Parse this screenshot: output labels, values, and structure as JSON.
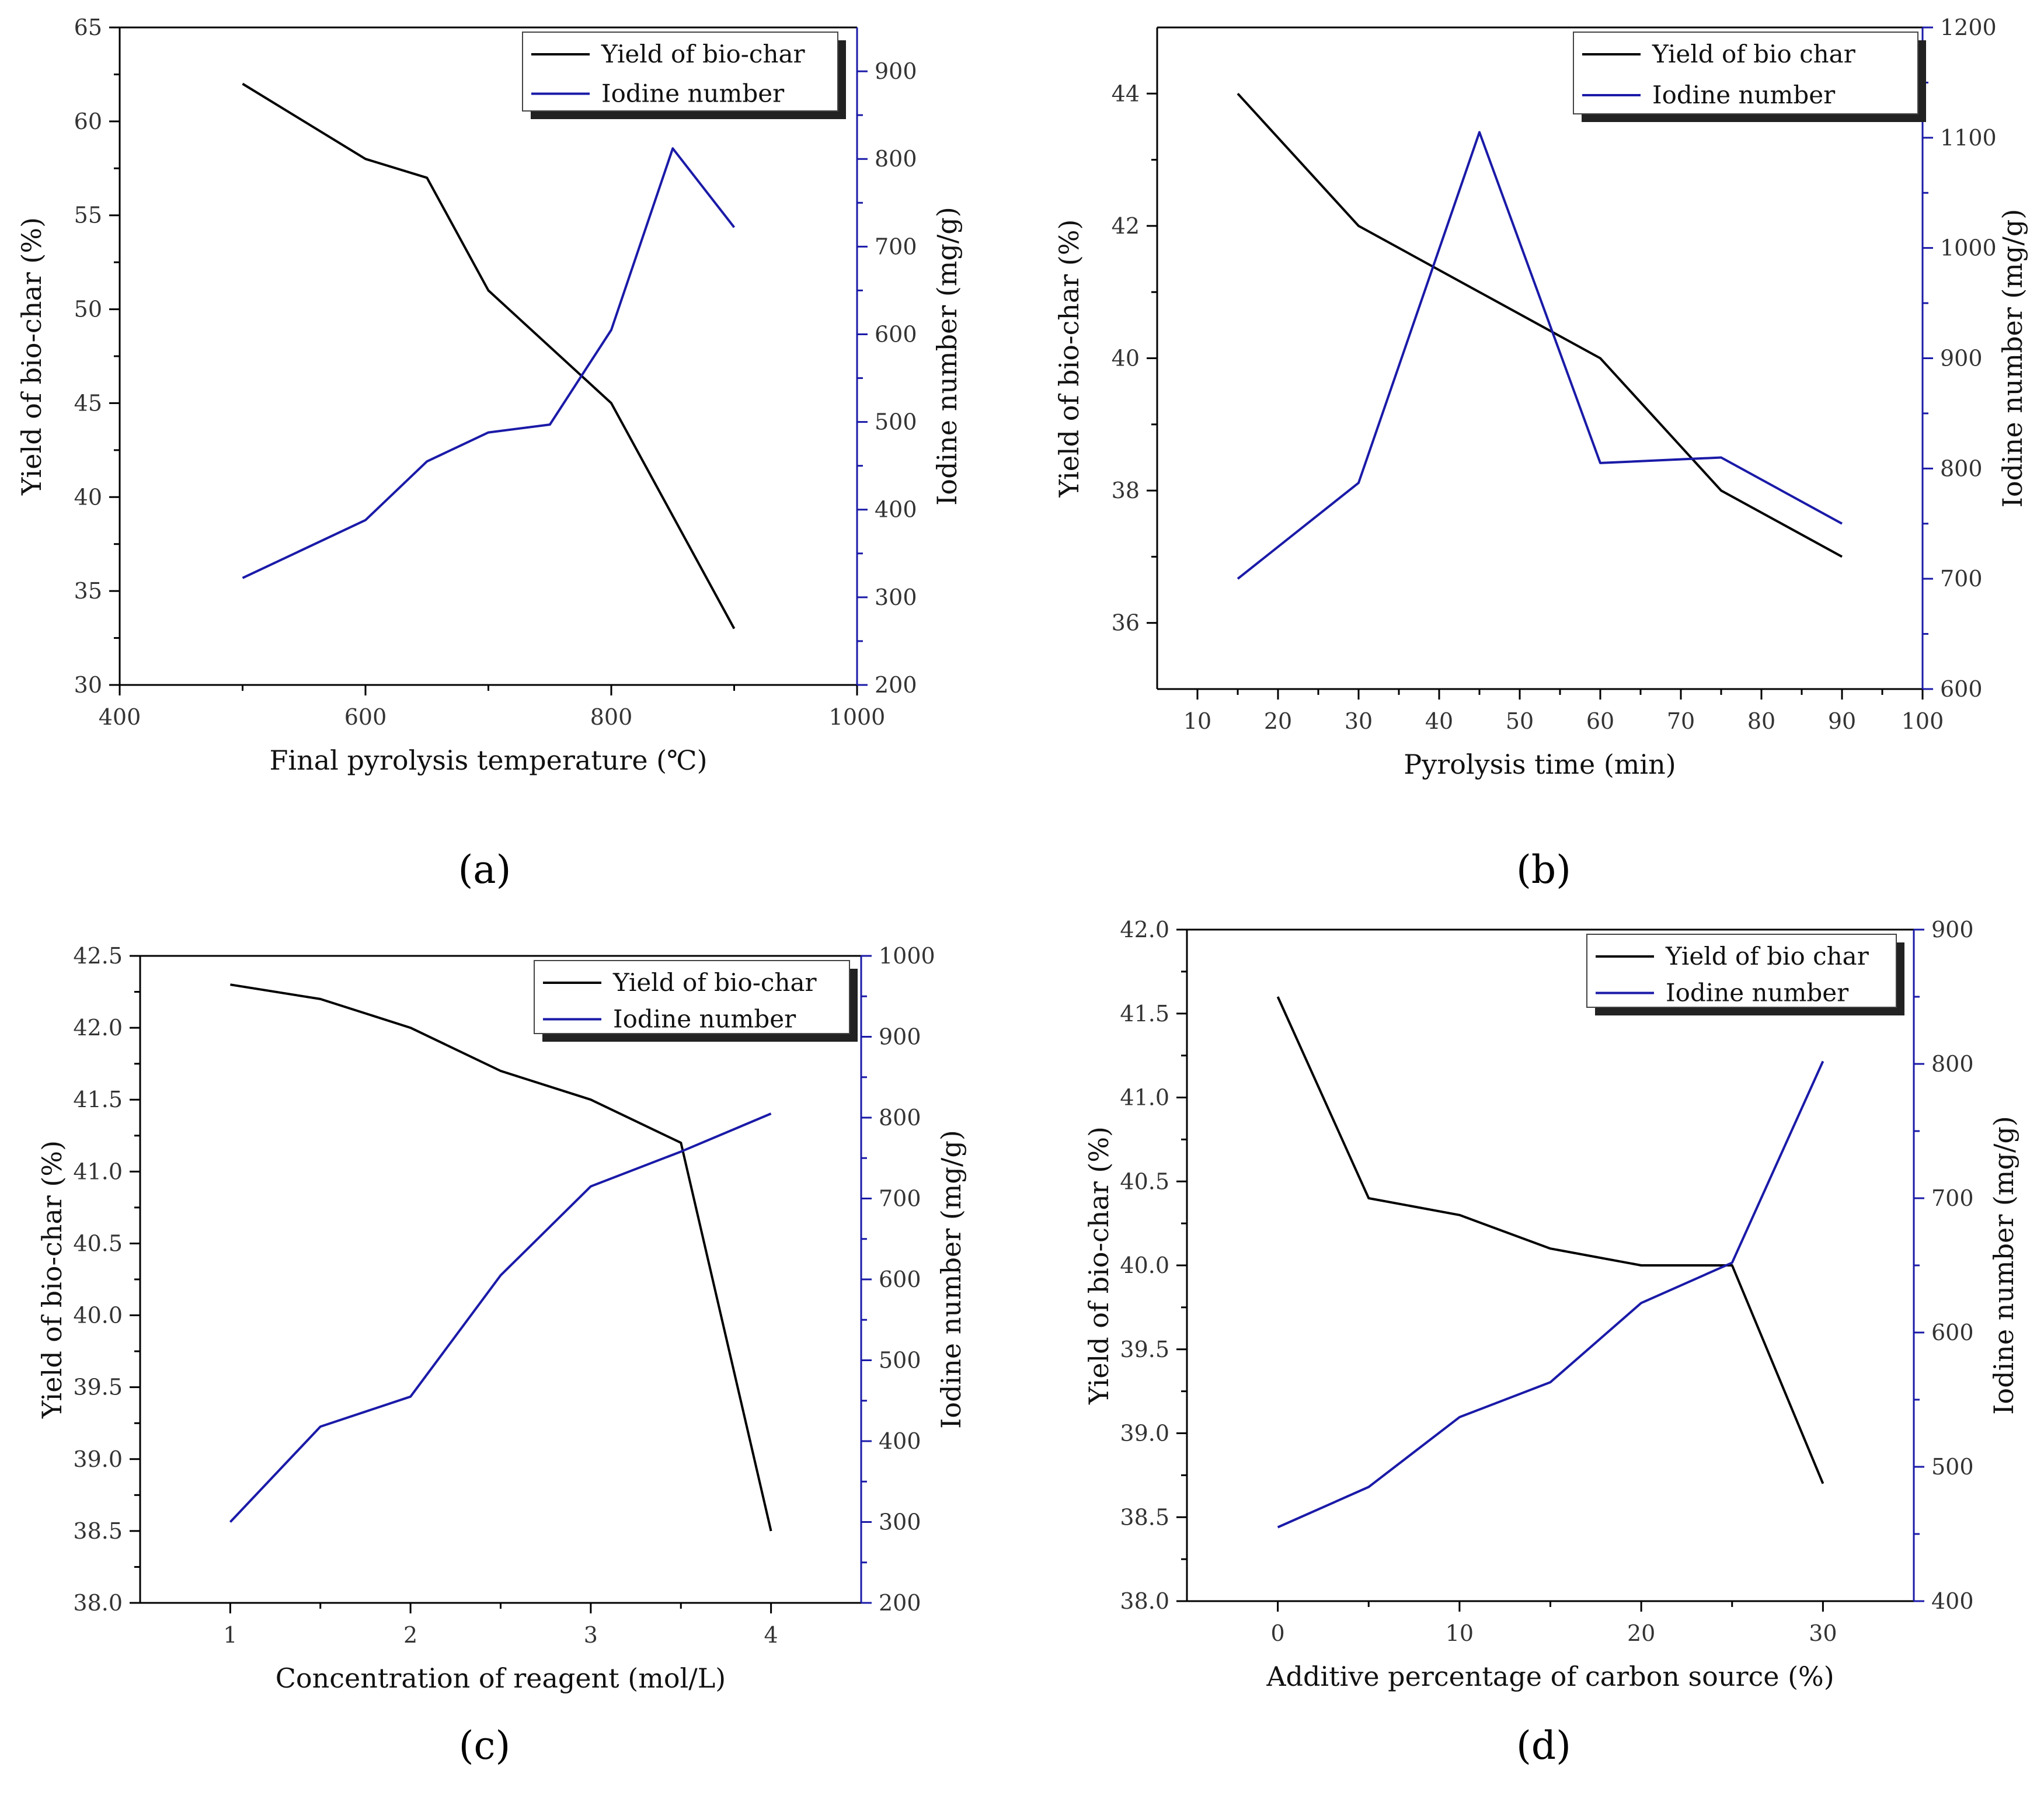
{
  "colors": {
    "yield": "#000000",
    "iodine": "#1a1aa8",
    "axis": "#000000"
  },
  "chart_data": [
    {
      "type": "line",
      "panel_label": "(a)",
      "xlabel": "Final pyrolysis temperature (℃)",
      "ylabel": "Yield of bio-char (%)",
      "y2label": "Iodine number (mg/g)",
      "xlim": [
        400,
        1000
      ],
      "xticks": [
        400,
        600,
        800,
        1000
      ],
      "xtick_labels": [
        "400",
        "600",
        "800",
        "1000"
      ],
      "ylim": [
        30,
        65
      ],
      "yticks": [
        30,
        35,
        40,
        45,
        50,
        55,
        60,
        65
      ],
      "ytick_labels": [
        "30",
        "35",
        "40",
        "45",
        "50",
        "55",
        "60",
        "65"
      ],
      "y2lim": [
        200,
        950
      ],
      "y2ticks": [
        200,
        300,
        400,
        500,
        600,
        700,
        800,
        900
      ],
      "y2tick_labels": [
        "200",
        "300",
        "400",
        "500",
        "600",
        "700",
        "800",
        "900"
      ],
      "series": [
        {
          "name": "Yield of bio-char",
          "axis": "left",
          "x": [
            500,
            600,
            650,
            700,
            800,
            900
          ],
          "values": [
            62,
            58,
            57,
            51,
            45,
            33
          ]
        },
        {
          "name": "Iodine number",
          "axis": "right",
          "x": [
            500,
            600,
            650,
            700,
            750,
            800,
            850,
            900
          ],
          "values": [
            322,
            388,
            455,
            488,
            497,
            605,
            812,
            722
          ]
        }
      ],
      "legend": [
        "Yield of bio-char",
        "Iodine number"
      ],
      "legend_position": "top-right"
    },
    {
      "type": "line",
      "panel_label": "(b)",
      "xlabel": "Pyrolysis time (min)",
      "ylabel": "Yield of bio-char (%)",
      "y2label": "Iodine number (mg/g)",
      "xlim": [
        5,
        100
      ],
      "xticks": [
        10,
        20,
        30,
        40,
        50,
        60,
        70,
        80,
        90,
        100
      ],
      "xtick_labels": [
        "10",
        "20",
        "30",
        "40",
        "50",
        "60",
        "70",
        "80",
        "90",
        "100"
      ],
      "ylim": [
        35,
        45
      ],
      "yticks": [
        36,
        38,
        40,
        42,
        44
      ],
      "ytick_labels": [
        "36",
        "38",
        "40",
        "42",
        "44"
      ],
      "y2lim": [
        600,
        1200
      ],
      "y2ticks": [
        600,
        700,
        800,
        900,
        1000,
        1100,
        1200
      ],
      "y2tick_labels": [
        "600",
        "700",
        "800",
        "900",
        "1000",
        "1100",
        "1200"
      ],
      "series": [
        {
          "name": "Yield of bio char",
          "axis": "left",
          "x": [
            15,
            30,
            45,
            60,
            75,
            90
          ],
          "values": [
            44,
            42,
            41,
            40,
            38,
            37
          ]
        },
        {
          "name": "Iodine number",
          "axis": "right",
          "x": [
            15,
            30,
            45,
            60,
            75,
            90
          ],
          "values": [
            700,
            787,
            1105,
            805,
            810,
            750
          ]
        }
      ],
      "legend": [
        "Yield of bio char",
        "Iodine number"
      ],
      "legend_position": "top-right"
    },
    {
      "type": "line",
      "panel_label": "(c)",
      "xlabel": "Concentration of reagent (mol/L)",
      "ylabel": "Yield of bio-char (%)",
      "y2label": "Iodine number (mg/g)",
      "xlim": [
        0.5,
        4.5
      ],
      "xticks": [
        1,
        2,
        3,
        4
      ],
      "xtick_labels": [
        "1",
        "2",
        "3",
        "4"
      ],
      "ylim": [
        38.0,
        42.5
      ],
      "yticks": [
        38.0,
        38.5,
        39.0,
        39.5,
        40.0,
        40.5,
        41.0,
        41.5,
        42.0,
        42.5
      ],
      "ytick_labels": [
        "38.0",
        "38.5",
        "39.0",
        "39.5",
        "40.0",
        "40.5",
        "41.0",
        "41.5",
        "42.0",
        "42.5"
      ],
      "y2lim": [
        200,
        1000
      ],
      "y2ticks": [
        200,
        300,
        400,
        500,
        600,
        700,
        800,
        900,
        1000
      ],
      "y2tick_labels": [
        "200",
        "300",
        "400",
        "500",
        "600",
        "700",
        "800",
        "900",
        "1000"
      ],
      "series": [
        {
          "name": "Yield of bio-char",
          "axis": "left",
          "x": [
            1,
            1.5,
            2,
            2.5,
            3,
            3.5,
            4
          ],
          "values": [
            42.3,
            42.2,
            42.0,
            41.7,
            41.5,
            41.2,
            38.5
          ]
        },
        {
          "name": "Iodine number",
          "axis": "right",
          "x": [
            1,
            1.5,
            2,
            2.5,
            3,
            3.5,
            4
          ],
          "values": [
            300,
            418,
            455,
            605,
            715,
            758,
            805
          ]
        }
      ],
      "legend": [
        "Yield of bio-char",
        "Iodine number"
      ],
      "legend_position": "top-right"
    },
    {
      "type": "line",
      "panel_label": "(d)",
      "xlabel": "Additive percentage of carbon source (%)",
      "ylabel": "Yield of bio-char (%)",
      "y2label": "Iodine number (mg/g)",
      "xlim": [
        -5,
        35
      ],
      "xticks": [
        0,
        10,
        20,
        30
      ],
      "xtick_labels": [
        "0",
        "10",
        "20",
        "30"
      ],
      "ylim": [
        38.0,
        42.0
      ],
      "yticks": [
        38.0,
        38.5,
        39.0,
        39.5,
        40.0,
        40.5,
        41.0,
        41.5,
        42.0
      ],
      "ytick_labels": [
        "38.0",
        "38.5",
        "39.0",
        "39.5",
        "40.0",
        "40.5",
        "41.0",
        "41.5",
        "42.0"
      ],
      "y2lim": [
        400,
        900
      ],
      "y2ticks": [
        400,
        500,
        600,
        700,
        800,
        900
      ],
      "y2tick_labels": [
        "400",
        "500",
        "600",
        "700",
        "800",
        "900"
      ],
      "series": [
        {
          "name": "Yield of bio char",
          "axis": "left",
          "x": [
            0,
            5,
            10,
            15,
            20,
            25,
            30
          ],
          "values": [
            41.6,
            40.4,
            40.3,
            40.1,
            40.0,
            40.0,
            38.7
          ]
        },
        {
          "name": "Iodine number",
          "axis": "right",
          "x": [
            0,
            5,
            10,
            15,
            20,
            25,
            30
          ],
          "values": [
            455,
            485,
            537,
            563,
            622,
            652,
            802
          ]
        }
      ],
      "legend": [
        "Yield of bio char",
        "Iodine number"
      ],
      "legend_position": "top-right"
    }
  ]
}
